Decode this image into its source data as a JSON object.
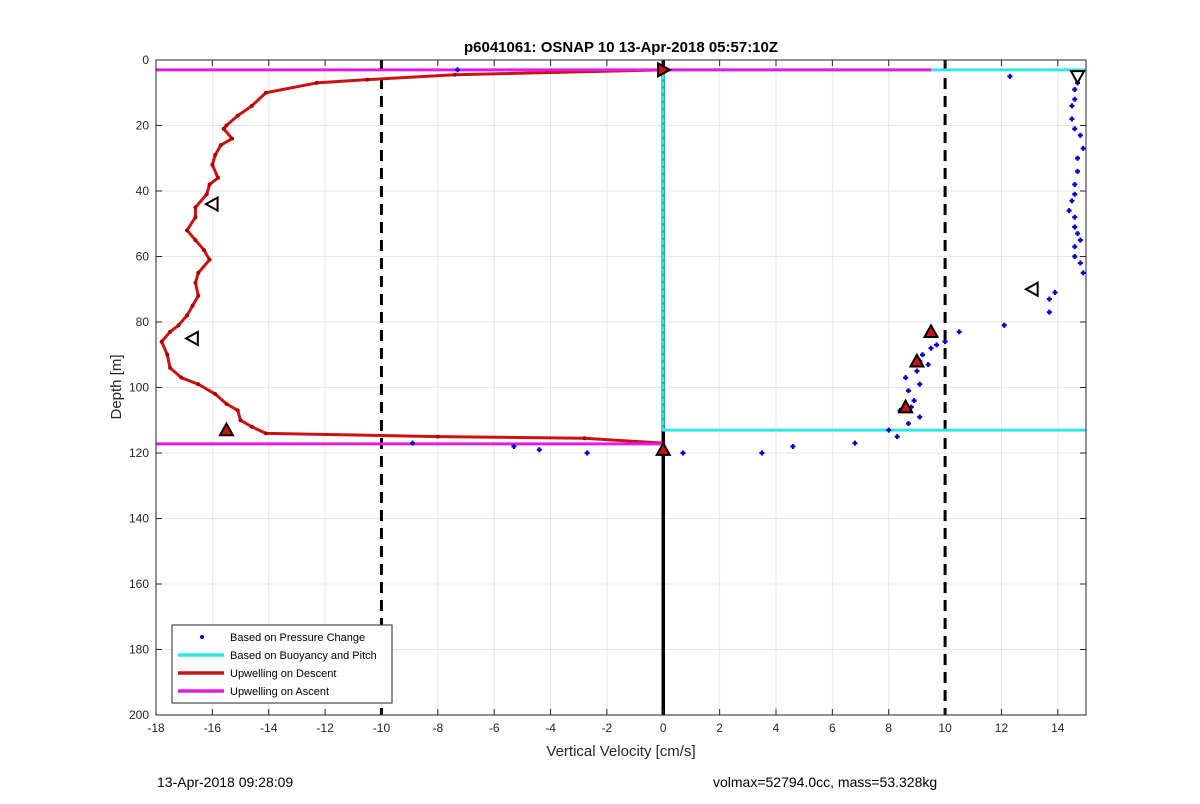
{
  "chart_data": {
    "type": "line",
    "title": "p6041061: OSNAP 10 13-Apr-2018 05:57:10Z",
    "xlabel": "Vertical Velocity [cm/s]",
    "ylabel": "Depth [m]",
    "xlim": [
      -18,
      15
    ],
    "ylim": [
      0,
      200
    ],
    "y_reversed": true,
    "grid": true,
    "x_ticks": [
      -18,
      -16,
      -14,
      -12,
      -10,
      -8,
      -6,
      -4,
      -2,
      0,
      2,
      4,
      6,
      8,
      10,
      12,
      14
    ],
    "y_ticks": [
      0,
      20,
      40,
      60,
      80,
      100,
      120,
      140,
      160,
      180,
      200
    ],
    "legend_position": "bottom-left",
    "legend": [
      {
        "label": "Based on Pressure Change",
        "color": "#0000cc",
        "style": "dot"
      },
      {
        "label": "Based on Buoyancy and Pitch",
        "color": "#33e6e6",
        "style": "line"
      },
      {
        "label": "Upwelling on Descent",
        "color": "#cc1111",
        "style": "line"
      },
      {
        "label": "Upwelling on Ascent",
        "color": "#e619e6",
        "style": "line"
      }
    ],
    "reference_lines": [
      {
        "name": "zero-line",
        "x": 0,
        "y_range": [
          0,
          200
        ],
        "color": "#000000",
        "style": "solid"
      },
      {
        "name": "dashed-left",
        "x": -10,
        "y_range": [
          0,
          200
        ],
        "color": "#000000",
        "style": "dashed"
      },
      {
        "name": "dashed-right",
        "x": 10,
        "y_range": [
          0,
          200
        ],
        "color": "#000000",
        "style": "dashed"
      }
    ],
    "series": [
      {
        "name": "Based on Buoyancy and Pitch",
        "color": "#33e6e6",
        "points": [
          [
            15,
            3
          ],
          [
            0,
            3
          ],
          [
            0,
            113
          ],
          [
            15,
            113
          ]
        ]
      },
      {
        "name": "Upwelling on Descent",
        "color": "#cc1111",
        "points": [
          [
            0,
            3
          ],
          [
            -7.4,
            4.5
          ],
          [
            -10.5,
            6
          ],
          [
            -12.3,
            7
          ],
          [
            -14.1,
            10
          ],
          [
            -14.6,
            14
          ],
          [
            -15.1,
            17
          ],
          [
            -15.5,
            20
          ],
          [
            -15.6,
            21
          ],
          [
            -15.3,
            24
          ],
          [
            -15.7,
            26
          ],
          [
            -15.9,
            29
          ],
          [
            -16,
            32
          ],
          [
            -15.8,
            36
          ],
          [
            -16.1,
            38
          ],
          [
            -16.2,
            41
          ],
          [
            -16.6,
            45
          ],
          [
            -16.6,
            48
          ],
          [
            -16.9,
            52
          ],
          [
            -16.6,
            55
          ],
          [
            -16.3,
            58
          ],
          [
            -16.1,
            61
          ],
          [
            -16.5,
            65
          ],
          [
            -16.6,
            68
          ],
          [
            -16.5,
            72
          ],
          [
            -16.7,
            75
          ],
          [
            -16.9,
            78
          ],
          [
            -17.2,
            81
          ],
          [
            -17.5,
            83
          ],
          [
            -17.8,
            86
          ],
          [
            -17.6,
            90
          ],
          [
            -17.5,
            94
          ],
          [
            -17.1,
            97
          ],
          [
            -16.5,
            99
          ],
          [
            -15.9,
            102
          ],
          [
            -15.5,
            105
          ],
          [
            -15.1,
            107
          ],
          [
            -15.0,
            110
          ],
          [
            -14.6,
            112
          ],
          [
            -14.1,
            114
          ],
          [
            -8,
            115
          ],
          [
            -2.8,
            115.5
          ],
          [
            0,
            117
          ]
        ]
      },
      {
        "name": "Upwelling on Ascent",
        "color": "#e619e6",
        "segments": [
          [
            [
              -18,
              3
            ],
            [
              9.5,
              3
            ]
          ],
          [
            [
              -18,
              117.2
            ],
            [
              0,
              117.2
            ]
          ]
        ]
      },
      {
        "name": "Based on Pressure Change",
        "color": "#0000cc",
        "points": [
          [
            -7.3,
            3
          ],
          [
            12.3,
            5
          ],
          [
            14.7,
            7
          ],
          [
            14.6,
            9
          ],
          [
            14.6,
            12
          ],
          [
            14.5,
            14
          ],
          [
            14.5,
            18
          ],
          [
            14.6,
            21
          ],
          [
            14.8,
            23
          ],
          [
            14.9,
            27
          ],
          [
            14.7,
            30
          ],
          [
            14.7,
            34
          ],
          [
            14.6,
            38
          ],
          [
            14.6,
            41
          ],
          [
            14.5,
            43
          ],
          [
            14.4,
            46
          ],
          [
            14.6,
            48
          ],
          [
            14.6,
            51
          ],
          [
            14.7,
            53
          ],
          [
            14.8,
            55
          ],
          [
            14.6,
            57
          ],
          [
            14.6,
            60
          ],
          [
            14.8,
            62
          ],
          [
            14.9,
            65
          ],
          [
            13.9,
            71
          ],
          [
            13.7,
            73
          ],
          [
            13.7,
            77
          ],
          [
            12.1,
            81
          ],
          [
            10.5,
            83
          ],
          [
            10.0,
            86
          ],
          [
            9.7,
            87
          ],
          [
            9.5,
            88
          ],
          [
            9.2,
            90
          ],
          [
            9.1,
            92
          ],
          [
            9.4,
            93
          ],
          [
            9.0,
            95
          ],
          [
            8.6,
            97
          ],
          [
            9.1,
            99
          ],
          [
            8.7,
            101
          ],
          [
            8.9,
            104
          ],
          [
            8.8,
            106
          ],
          [
            8.4,
            107
          ],
          [
            9.1,
            109
          ],
          [
            8.7,
            111
          ],
          [
            8.0,
            113
          ],
          [
            8.3,
            115
          ],
          [
            6.8,
            117
          ],
          [
            4.6,
            118
          ],
          [
            3.5,
            120
          ],
          [
            0.7,
            120
          ],
          [
            -2.7,
            120
          ],
          [
            -4.4,
            119
          ],
          [
            -5.3,
            118
          ],
          [
            -8.9,
            117
          ]
        ]
      }
    ],
    "markers": [
      {
        "name": "Descent turning points",
        "shape": "triangle-left",
        "fill": "#ffffff",
        "points": [
          [
            -16,
            44
          ],
          [
            -16.7,
            85
          ],
          [
            13.1,
            70
          ]
        ]
      },
      {
        "name": "Surface marker",
        "shape": "triangle-down",
        "fill": "#ffffff",
        "points": [
          [
            14.7,
            5
          ]
        ]
      },
      {
        "name": "Ascent turning points",
        "shape": "triangle-up",
        "fill": "#cc1111",
        "points": [
          [
            9.5,
            83
          ],
          [
            9.0,
            92
          ],
          [
            8.6,
            106
          ],
          [
            -15.5,
            113
          ],
          [
            0,
            119
          ]
        ]
      },
      {
        "name": "Top turn",
        "shape": "triangle-right",
        "fill": "#cc1111",
        "points": [
          [
            0,
            3
          ]
        ]
      }
    ]
  },
  "footer": {
    "left": "13-Apr-2018 09:28:09",
    "right": "volmax=52794.0cc, mass=53.328kg"
  }
}
